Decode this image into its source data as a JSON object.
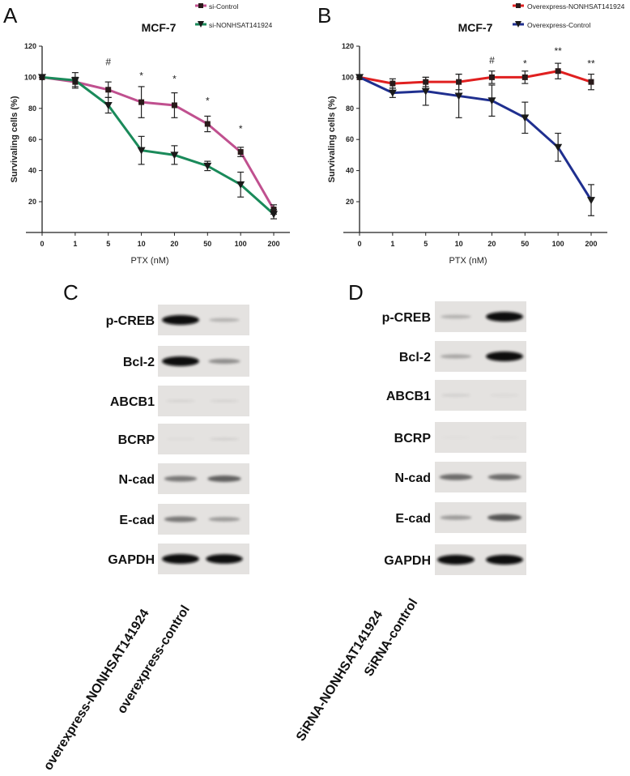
{
  "chart_data": [
    {
      "type": "line",
      "panel": "A",
      "title": "MCF-7",
      "xlabel": "PTX (nM)",
      "ylabel": "Survivaling cells (%)",
      "categories": [
        "0",
        "1",
        "5",
        "10",
        "20",
        "50",
        "100",
        "200"
      ],
      "yticks": [
        20,
        40,
        60,
        80,
        100,
        120
      ],
      "ylim": [
        0,
        120
      ],
      "grid": false,
      "legend": "top-right",
      "series": [
        {
          "name": "si-Control",
          "marker": "square",
          "color": "#c0508f",
          "values": [
            100,
            97,
            92,
            84,
            82,
            70,
            52,
            15
          ],
          "errors": [
            0,
            3,
            5,
            10,
            8,
            5,
            3,
            3
          ]
        },
        {
          "name": "si-NONHSAT141924",
          "marker": "triangle-down",
          "color": "#1a8a5a",
          "values": [
            100,
            98,
            82,
            53,
            50,
            43,
            31,
            12
          ],
          "errors": [
            0,
            5,
            5,
            9,
            6,
            3,
            8,
            3
          ]
        }
      ],
      "annotations": [
        {
          "x": "5",
          "text": "#",
          "y": 112
        },
        {
          "x": "10",
          "text": "*",
          "y": 103
        },
        {
          "x": "20",
          "text": "*",
          "y": 101
        },
        {
          "x": "50",
          "text": "*",
          "y": 87
        },
        {
          "x": "100",
          "text": "*",
          "y": 69
        }
      ]
    },
    {
      "type": "line",
      "panel": "B",
      "title": "MCF-7",
      "xlabel": "PTX (nM)",
      "ylabel": "Survivaling cells (%)",
      "categories": [
        "0",
        "1",
        "5",
        "10",
        "20",
        "50",
        "100",
        "200"
      ],
      "yticks": [
        20,
        40,
        60,
        80,
        100,
        120
      ],
      "ylim": [
        0,
        120
      ],
      "grid": false,
      "legend": "top-right",
      "series": [
        {
          "name": "Overexpress-NONHSAT141924",
          "marker": "square",
          "color": "#e02020",
          "values": [
            100,
            96,
            97,
            97,
            100,
            100,
            104,
            97
          ],
          "errors": [
            0,
            3,
            3,
            5,
            4,
            4,
            5,
            5
          ]
        },
        {
          "name": "Overexpress-Control",
          "marker": "triangle-down",
          "color": "#1f2f8f",
          "values": [
            100,
            90,
            91,
            88,
            85,
            74,
            55,
            21
          ],
          "errors": [
            0,
            3,
            9,
            14,
            10,
            10,
            9,
            10
          ]
        }
      ],
      "annotations": [
        {
          "x": "20",
          "text": "#",
          "y": 113
        },
        {
          "x": "50",
          "text": "*",
          "y": 111
        },
        {
          "x": "100",
          "text": "**",
          "y": 119
        },
        {
          "x": "200",
          "text": "**",
          "y": 111
        }
      ]
    }
  ],
  "blots": [
    {
      "panel": "C",
      "lanes": [
        "overexpress-NONHSAT141924",
        "overexpress-control"
      ],
      "rows": [
        {
          "label": "p-CREB",
          "intensity": [
            1.0,
            0.2
          ]
        },
        {
          "label": "Bcl-2",
          "intensity": [
            1.0,
            0.35
          ]
        },
        {
          "label": "ABCB1",
          "intensity": [
            0.06,
            0.06
          ]
        },
        {
          "label": "BCRP",
          "intensity": [
            0.03,
            0.07
          ]
        },
        {
          "label": "N-cad",
          "intensity": [
            0.45,
            0.55
          ]
        },
        {
          "label": "E-cad",
          "intensity": [
            0.45,
            0.3
          ]
        },
        {
          "label": "GAPDH",
          "intensity": [
            1.0,
            0.95
          ]
        }
      ]
    },
    {
      "panel": "D",
      "lanes": [
        "SiRNA-NONHSAT141924",
        "SiRNA-control"
      ],
      "rows": [
        {
          "label": "p-CREB",
          "intensity": [
            0.2,
            1.0
          ]
        },
        {
          "label": "Bcl-2",
          "intensity": [
            0.25,
            1.0
          ]
        },
        {
          "label": "ABCB1",
          "intensity": [
            0.08,
            0.04
          ]
        },
        {
          "label": "BCRP",
          "intensity": [
            0.02,
            0.02
          ]
        },
        {
          "label": "N-cad",
          "intensity": [
            0.5,
            0.5
          ]
        },
        {
          "label": "E-cad",
          "intensity": [
            0.3,
            0.6
          ]
        },
        {
          "label": "GAPDH",
          "intensity": [
            1.0,
            1.0
          ]
        }
      ]
    }
  ]
}
